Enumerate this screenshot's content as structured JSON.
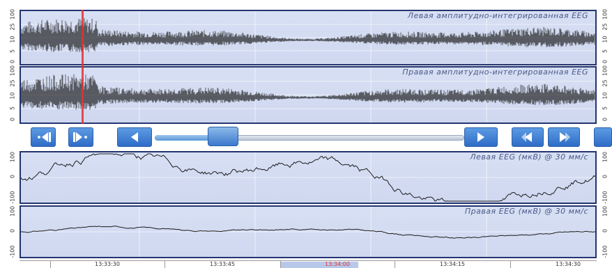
{
  "panels": {
    "left_aeeg": {
      "title": "Левая амплитудно-интегрированная EEG",
      "ticks": [
        "100",
        "25",
        "10",
        "5",
        "0"
      ]
    },
    "right_aeeg": {
      "title": "Правая амплитудно-интегрированная EEG",
      "ticks": [
        "100",
        "25",
        "10",
        "5",
        "0"
      ]
    },
    "left_eeg": {
      "title": "Левая EEG (мкВ) @ 30 мм/с",
      "ticks": [
        "100",
        "0",
        "-100"
      ]
    },
    "right_eeg": {
      "title": "Правая EEG (мкВ) @ 30 мм/с",
      "ticks": [
        "100",
        "0",
        "-100"
      ]
    }
  },
  "controls": {
    "prev_marker": "prev-marker-icon",
    "next_marker": "next-marker-icon",
    "scroll_left": "scroll-left-icon",
    "scroll_right": "scroll-right-icon",
    "page_back": "page-back-icon",
    "page_forward": "page-forward-icon",
    "scroll_position": 0.2
  },
  "timeline": {
    "labels": [
      "13:33:30",
      "13:33:45",
      "13:34:00",
      "13:34:15",
      "13:34:30"
    ],
    "current": "13:34:00"
  },
  "colors": {
    "trace": "#1c1c1c",
    "cursor": "#e53030",
    "accent": "#2f6cc7",
    "current_time": "#e53030"
  }
}
